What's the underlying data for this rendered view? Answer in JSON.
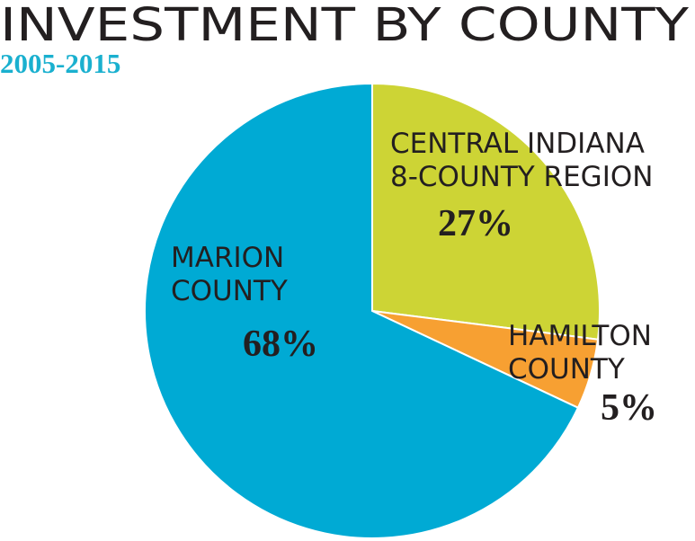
{
  "chart_data": {
    "type": "pie",
    "title": "INVESTMENT BY COUNTY",
    "subtitle": "2005-2015",
    "categories": [
      "CENTRAL INDIANA\n8-COUNTY REGION",
      "HAMILTON\nCOUNTY",
      "MARION\nCOUNTY"
    ],
    "values": [
      27,
      5,
      68
    ],
    "value_labels": [
      "27%",
      "5%",
      "68%"
    ],
    "colors": [
      "#cdd435",
      "#f7a032",
      "#00aad4"
    ]
  }
}
